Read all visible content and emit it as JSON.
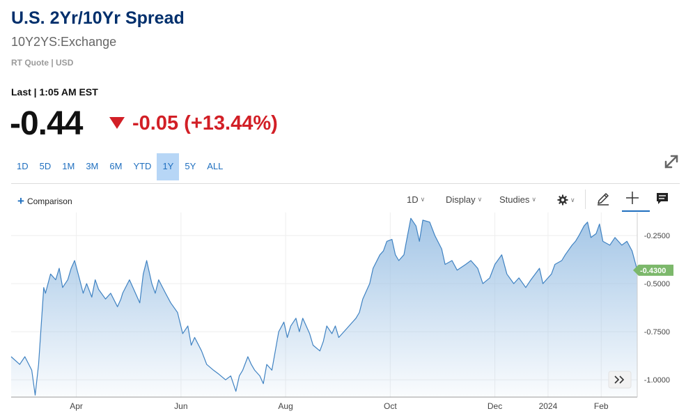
{
  "header": {
    "title": "U.S. 2Yr/10Yr Spread",
    "symbol": "10Y2YS:Exchange",
    "quote_type": "RT Quote | USD",
    "last_label": "Last | 1:05 AM EST",
    "price": "-0.44",
    "change": "-0.05 (+13.44%)",
    "change_color": "#d21f26"
  },
  "ranges": [
    "1D",
    "5D",
    "1M",
    "3M",
    "6M",
    "YTD",
    "1Y",
    "5Y",
    "ALL"
  ],
  "active_range": "1Y",
  "toolbar": {
    "comparison_label": "Comparison",
    "interval_label": "1D",
    "display_label": "Display",
    "studies_label": "Studies"
  },
  "icons": {
    "expand": "expand-icon",
    "settings": "gear-icon",
    "draw": "pencil-icon",
    "crosshair": "crosshair-icon",
    "comment": "comment-icon",
    "scroll": "double-chevron-right-icon"
  },
  "colors": {
    "line": "#3f82c2",
    "fill_top": "#9fc3e5",
    "last_tag": "#7cb86b",
    "accent": "#1f6fbf"
  },
  "chart_data": {
    "type": "area",
    "x_ticks": [
      "Apr",
      "Jun",
      "Aug",
      "Oct",
      "Dec",
      "2024",
      "Feb"
    ],
    "y_ticks": [
      "-0.2500",
      "-0.5000",
      "-0.7500",
      "-1.0000"
    ],
    "ylim": [
      -1.09,
      -0.13
    ],
    "last_value_label": "-0.4300",
    "last_value": -0.43,
    "grid": true,
    "x": [
      "2023-02-22",
      "2023-02-27",
      "2023-03-02",
      "2023-03-06",
      "2023-03-08",
      "2023-03-10",
      "2023-03-13",
      "2023-03-14",
      "2023-03-17",
      "2023-03-20",
      "2023-03-22",
      "2023-03-24",
      "2023-03-27",
      "2023-03-29",
      "2023-03-31",
      "2023-04-03",
      "2023-04-05",
      "2023-04-07",
      "2023-04-10",
      "2023-04-12",
      "2023-04-14",
      "2023-04-18",
      "2023-04-21",
      "2023-04-25",
      "2023-04-27",
      "2023-04-28",
      "2023-05-02",
      "2023-05-04",
      "2023-05-08",
      "2023-05-10",
      "2023-05-12",
      "2023-05-15",
      "2023-05-17",
      "2023-05-19",
      "2023-05-23",
      "2023-05-26",
      "2023-05-30",
      "2023-06-02",
      "2023-06-05",
      "2023-06-07",
      "2023-06-09",
      "2023-06-13",
      "2023-06-16",
      "2023-06-20",
      "2023-06-23",
      "2023-06-27",
      "2023-06-30",
      "2023-07-03",
      "2023-07-05",
      "2023-07-07",
      "2023-07-10",
      "2023-07-12",
      "2023-07-14",
      "2023-07-17",
      "2023-07-19",
      "2023-07-21",
      "2023-07-24",
      "2023-07-26",
      "2023-07-28",
      "2023-07-31",
      "2023-08-02",
      "2023-08-04",
      "2023-08-07",
      "2023-08-09",
      "2023-08-11",
      "2023-08-15",
      "2023-08-17",
      "2023-08-21",
      "2023-08-23",
      "2023-08-25",
      "2023-08-28",
      "2023-08-30",
      "2023-09-01",
      "2023-09-05",
      "2023-09-07",
      "2023-09-11",
      "2023-09-13",
      "2023-09-15",
      "2023-09-19",
      "2023-09-21",
      "2023-09-25",
      "2023-09-27",
      "2023-09-29",
      "2023-10-02",
      "2023-10-04",
      "2023-10-06",
      "2023-10-09",
      "2023-10-10",
      "2023-10-13",
      "2023-10-16",
      "2023-10-18",
      "2023-10-20",
      "2023-10-24",
      "2023-10-27",
      "2023-10-31",
      "2023-11-02",
      "2023-11-06",
      "2023-11-09",
      "2023-11-14",
      "2023-11-17",
      "2023-11-21",
      "2023-11-24",
      "2023-11-28",
      "2023-12-01",
      "2023-12-05",
      "2023-12-08",
      "2023-12-12",
      "2023-12-15",
      "2023-12-19",
      "2023-12-22",
      "2023-12-27",
      "2023-12-29",
      "2024-01-03",
      "2024-01-05",
      "2024-01-09",
      "2024-01-11",
      "2024-01-15",
      "2024-01-17",
      "2024-01-19",
      "2024-01-22",
      "2024-01-24",
      "2024-01-26",
      "2024-01-29",
      "2024-01-31",
      "2024-02-02",
      "2024-02-06",
      "2024-02-09",
      "2024-02-13",
      "2024-02-16",
      "2024-02-19",
      "2024-02-22"
    ],
    "values": [
      -0.88,
      -0.92,
      -0.88,
      -0.95,
      -1.08,
      -0.92,
      -0.52,
      -0.55,
      -0.45,
      -0.48,
      -0.42,
      -0.52,
      -0.48,
      -0.42,
      -0.38,
      -0.48,
      -0.55,
      -0.5,
      -0.57,
      -0.48,
      -0.53,
      -0.58,
      -0.55,
      -0.62,
      -0.58,
      -0.55,
      -0.48,
      -0.52,
      -0.6,
      -0.45,
      -0.38,
      -0.5,
      -0.55,
      -0.48,
      -0.55,
      -0.6,
      -0.65,
      -0.76,
      -0.72,
      -0.82,
      -0.78,
      -0.85,
      -0.92,
      -0.95,
      -0.97,
      -1.0,
      -0.98,
      -1.06,
      -0.98,
      -0.95,
      -0.88,
      -0.92,
      -0.95,
      -0.98,
      -1.02,
      -0.92,
      -0.95,
      -0.85,
      -0.75,
      -0.7,
      -0.78,
      -0.72,
      -0.68,
      -0.75,
      -0.68,
      -0.76,
      -0.82,
      -0.85,
      -0.8,
      -0.72,
      -0.76,
      -0.72,
      -0.78,
      -0.74,
      -0.72,
      -0.68,
      -0.65,
      -0.58,
      -0.5,
      -0.42,
      -0.35,
      -0.33,
      -0.28,
      -0.27,
      -0.35,
      -0.38,
      -0.35,
      -0.3,
      -0.16,
      -0.2,
      -0.28,
      -0.17,
      -0.18,
      -0.25,
      -0.32,
      -0.4,
      -0.38,
      -0.43,
      -0.4,
      -0.38,
      -0.42,
      -0.5,
      -0.47,
      -0.4,
      -0.35,
      -0.45,
      -0.5,
      -0.47,
      -0.52,
      -0.48,
      -0.42,
      -0.5,
      -0.45,
      -0.4,
      -0.38,
      -0.35,
      -0.3,
      -0.28,
      -0.25,
      -0.2,
      -0.18,
      -0.26,
      -0.24,
      -0.19,
      -0.28,
      -0.3,
      -0.26,
      -0.3,
      -0.28,
      -0.33,
      -0.43
    ]
  }
}
